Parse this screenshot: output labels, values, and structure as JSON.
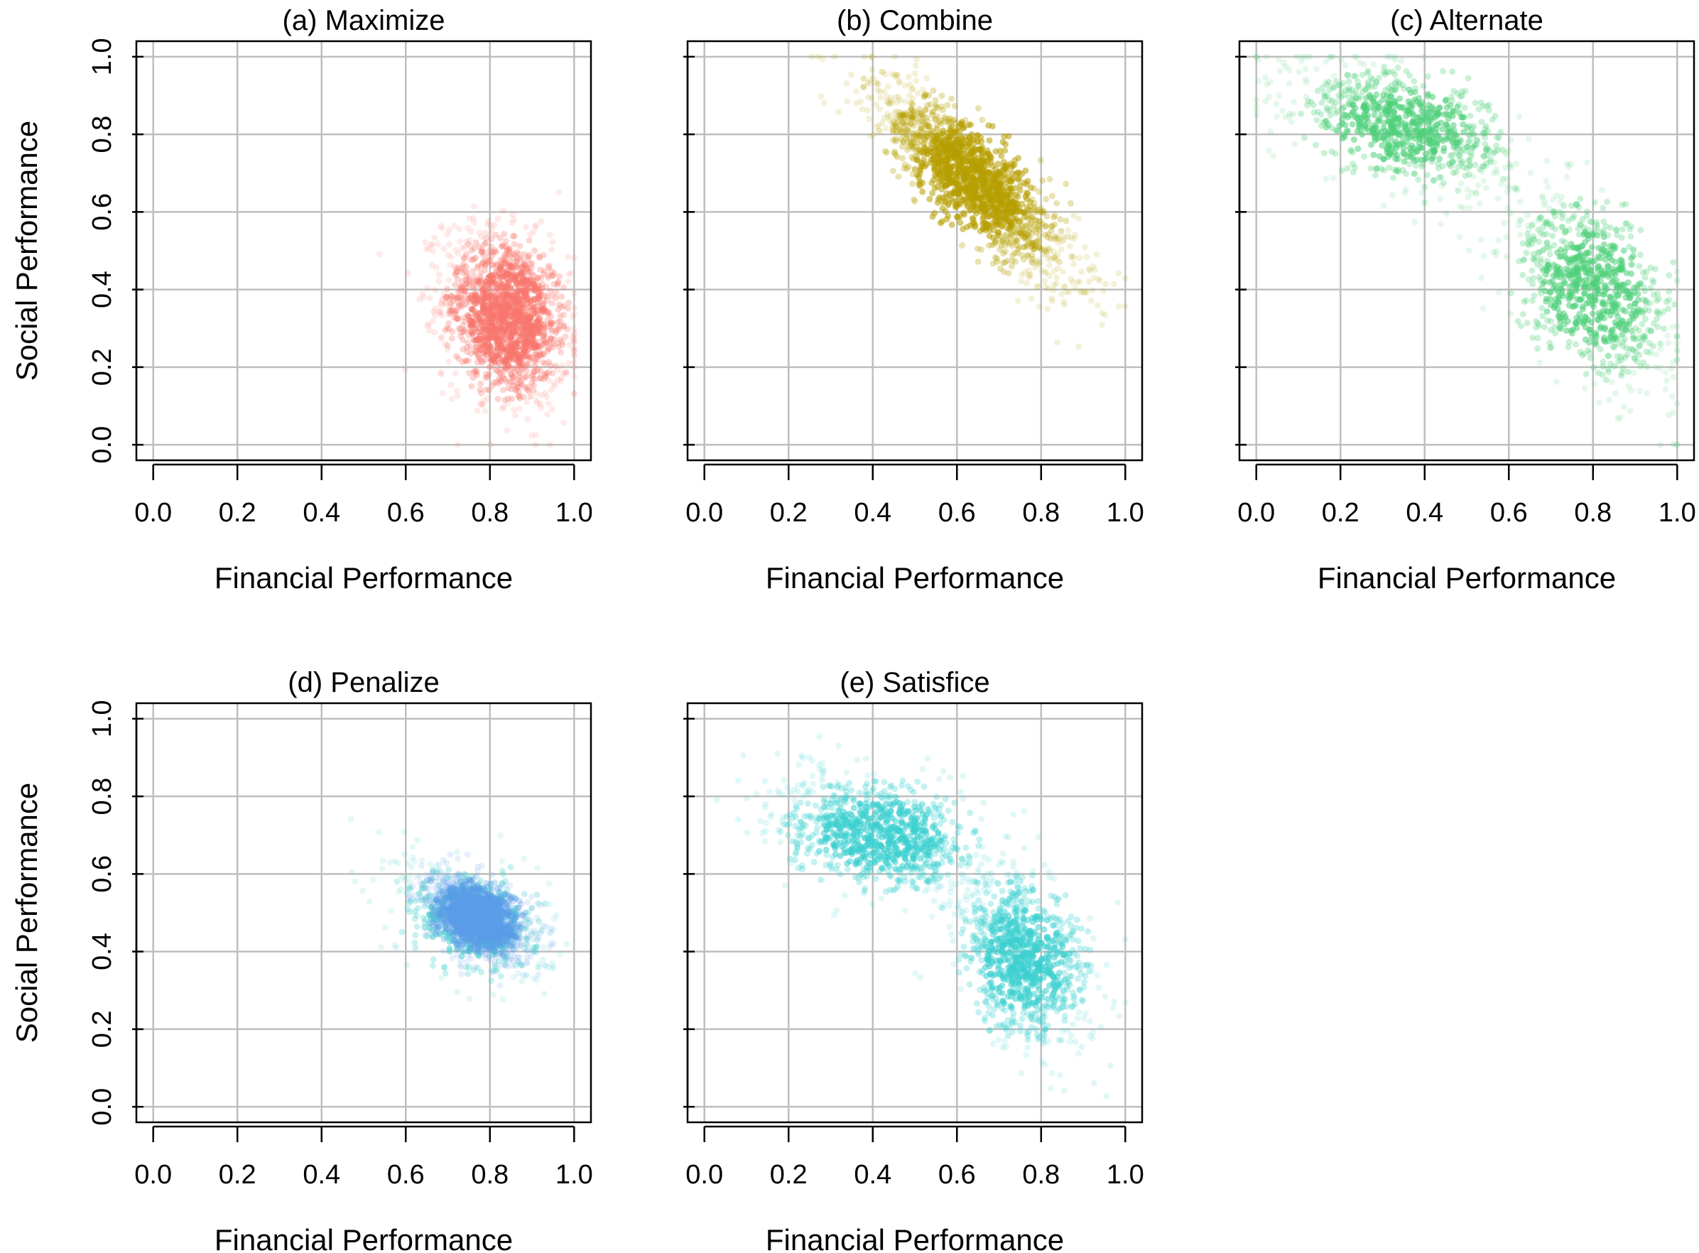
{
  "figure": {
    "background": "#ffffff",
    "grid_color": "#bebebe",
    "axis_color": "#000000"
  },
  "chart_data": [
    {
      "type": "scatter",
      "panel": "a",
      "title": "(a)  Maximize",
      "xlabel": "Financial Performance",
      "ylabel": "Social Performance",
      "xlim": [
        0,
        1
      ],
      "ylim": [
        0,
        1
      ],
      "x_ticks": [
        "0.0",
        "0.2",
        "0.4",
        "0.6",
        "0.8",
        "1.0"
      ],
      "y_ticks": [
        "0.0",
        "0.2",
        "0.4",
        "0.6",
        "0.8",
        "1.0"
      ],
      "grid": true,
      "series": [
        {
          "color": "#f8766d",
          "clusters": [
            {
              "cx": 0.84,
              "cy": 0.33,
              "sx": 0.075,
              "sy": 0.11,
              "rho": -0.25,
              "n": 1400,
              "clampX": [
                0.5,
                1.0
              ],
              "clampY": [
                0.0,
                0.88
              ]
            }
          ]
        }
      ]
    },
    {
      "type": "scatter",
      "panel": "b",
      "title": "(b)  Combine",
      "xlabel": "Financial Performance",
      "ylabel": "",
      "xlim": [
        0,
        1
      ],
      "ylim": [
        0,
        1
      ],
      "x_ticks": [
        "0.0",
        "0.2",
        "0.4",
        "0.6",
        "0.8",
        "1.0"
      ],
      "y_ticks": [],
      "grid": true,
      "series": [
        {
          "color": "#b79f00",
          "clusters": [
            {
              "cx": 0.64,
              "cy": 0.68,
              "sx": 0.12,
              "sy": 0.13,
              "rho": -0.85,
              "n": 1500,
              "clampX": [
                0.25,
                1.0
              ],
              "clampY": [
                0.24,
                1.0
              ]
            }
          ]
        }
      ]
    },
    {
      "type": "scatter",
      "panel": "c",
      "title": "(c)  Alternate",
      "xlabel": "Financial Performance",
      "ylabel": "",
      "xlim": [
        0,
        1
      ],
      "ylim": [
        0,
        1
      ],
      "x_ticks": [
        "0.0",
        "0.2",
        "0.4",
        "0.6",
        "0.8",
        "1.0"
      ],
      "y_ticks": [],
      "grid": true,
      "series": [
        {
          "color": "#4fcf7a",
          "clusters": [
            {
              "cx": 0.35,
              "cy": 0.82,
              "sx": 0.13,
              "sy": 0.08,
              "rho": -0.5,
              "n": 800,
              "clampX": [
                0.0,
                1.0
              ],
              "clampY": [
                0.0,
                1.0
              ]
            },
            {
              "cx": 0.8,
              "cy": 0.4,
              "sx": 0.1,
              "sy": 0.12,
              "rho": -0.5,
              "n": 800,
              "clampX": [
                0.0,
                1.0
              ],
              "clampY": [
                0.0,
                1.0
              ]
            }
          ]
        }
      ]
    },
    {
      "type": "scatter",
      "panel": "d",
      "title": "(d)  Penalize",
      "xlabel": "Financial Performance",
      "ylabel": "Social Performance",
      "xlim": [
        0,
        1
      ],
      "ylim": [
        0,
        1
      ],
      "x_ticks": [
        "0.0",
        "0.2",
        "0.4",
        "0.6",
        "0.8",
        "1.0"
      ],
      "y_ticks": [
        "0.0",
        "0.2",
        "0.4",
        "0.6",
        "0.8",
        "1.0"
      ],
      "grid": true,
      "series": [
        {
          "color": "#4fcfd0",
          "clusters": [
            {
              "cx": 0.76,
              "cy": 0.48,
              "sx": 0.09,
              "sy": 0.08,
              "rho": -0.4,
              "n": 500,
              "clampX": [
                0.45,
                1.0
              ],
              "clampY": [
                0.2,
                0.85
              ]
            }
          ]
        },
        {
          "color": "#5b9de8",
          "clusters": [
            {
              "cx": 0.77,
              "cy": 0.49,
              "sx": 0.055,
              "sy": 0.05,
              "rho": -0.4,
              "n": 1400,
              "clampX": [
                0.55,
                1.0
              ],
              "clampY": [
                0.3,
                0.65
              ]
            }
          ]
        }
      ]
    },
    {
      "type": "scatter",
      "panel": "e",
      "title": "(e)  Satisfice",
      "xlabel": "Financial Performance",
      "ylabel": "",
      "xlim": [
        0,
        1
      ],
      "ylim": [
        0,
        1
      ],
      "x_ticks": [
        "0.0",
        "0.2",
        "0.4",
        "0.6",
        "0.8",
        "1.0"
      ],
      "y_ticks": [],
      "grid": true,
      "series": [
        {
          "color": "#3dcfd0",
          "clusters": [
            {
              "cx": 0.42,
              "cy": 0.7,
              "sx": 0.12,
              "sy": 0.075,
              "rho": -0.35,
              "n": 900,
              "clampX": [
                0.0,
                1.0
              ],
              "clampY": [
                0.0,
                1.0
              ]
            },
            {
              "cx": 0.76,
              "cy": 0.38,
              "sx": 0.08,
              "sy": 0.11,
              "rho": -0.35,
              "n": 900,
              "clampX": [
                0.0,
                1.0
              ],
              "clampY": [
                0.0,
                1.0
              ]
            }
          ]
        }
      ]
    }
  ]
}
